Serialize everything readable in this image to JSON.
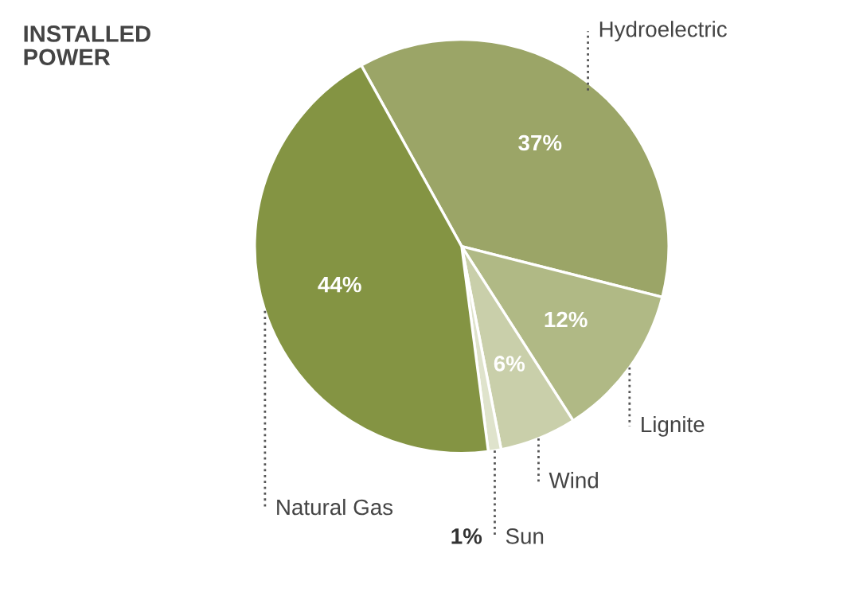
{
  "chart_data": {
    "type": "pie",
    "title": "INSTALLED\nPOWER",
    "categories": [
      "Hydroelectric",
      "Lignite",
      "Wind",
      "Sun",
      "Natural Gas"
    ],
    "values": [
      37,
      12,
      6,
      1,
      44
    ],
    "colors": [
      "#9ba567",
      "#b0b985",
      "#c9cfaa",
      "#dfe3cc",
      "#849443"
    ],
    "value_labels": [
      "37%",
      "12%",
      "6%",
      "1%",
      "44%"
    ],
    "legend": false
  }
}
